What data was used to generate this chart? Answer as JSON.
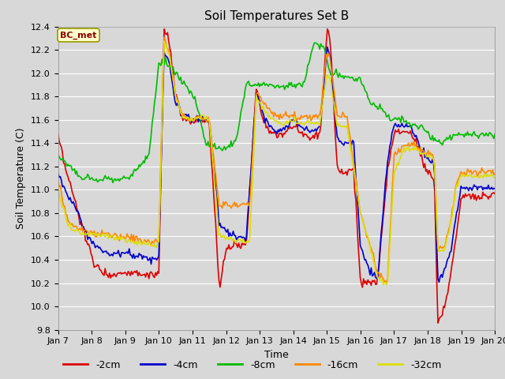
{
  "title": "Soil Temperatures Set B",
  "xlabel": "Time",
  "ylabel": "Soil Temperature (C)",
  "ylim": [
    9.8,
    12.4
  ],
  "annotation": "BC_met",
  "colors": {
    "-2cm": "#dd0000",
    "-4cm": "#0000cc",
    "-8cm": "#00bb00",
    "-16cm": "#ff8800",
    "-32cm": "#dddd00"
  },
  "line_width": 1.2,
  "x_ticks": [
    "Jan 7",
    "Jan 8",
    "Jan 9",
    "Jan 10",
    "Jan 11",
    "Jan 12",
    "Jan 13",
    "Jan 14",
    "Jan 15",
    "Jan 16",
    "Jan 17",
    "Jan 18",
    "Jan 19",
    "Jan 20"
  ],
  "background_color": "#d8d8d8",
  "plot_bg_color": "#d8d8d8",
  "grid_color": "#ffffff",
  "y_ticks": [
    9.8,
    10.0,
    10.2,
    10.4,
    10.6,
    10.8,
    11.0,
    11.2,
    11.4,
    11.6,
    11.8,
    12.0,
    12.2,
    12.4
  ],
  "knots_2cm_t": [
    0,
    0.2,
    0.5,
    0.8,
    1.1,
    1.5,
    1.8,
    2.0,
    2.5,
    2.8,
    3.0,
    3.15,
    3.3,
    3.5,
    3.7,
    4.0,
    4.2,
    4.5,
    4.8,
    5.0,
    5.3,
    5.6,
    5.9,
    6.1,
    6.3,
    6.5,
    6.8,
    7.0,
    7.2,
    7.5,
    7.8,
    8.0,
    8.1,
    8.3,
    8.5,
    8.8,
    9.0,
    9.2,
    9.5,
    9.8,
    10.0,
    10.2,
    10.5,
    10.8,
    11.0,
    11.1,
    11.2,
    11.3,
    11.5,
    11.7,
    11.85,
    12.0,
    12.2,
    12.5,
    13.0
  ],
  "knots_2cm_v": [
    11.45,
    11.2,
    10.9,
    10.6,
    10.35,
    10.27,
    10.28,
    10.3,
    10.28,
    10.26,
    10.28,
    12.35,
    12.3,
    11.8,
    11.6,
    11.58,
    11.6,
    11.58,
    10.15,
    10.5,
    10.53,
    10.52,
    11.9,
    11.6,
    11.5,
    11.45,
    11.5,
    11.55,
    11.5,
    11.45,
    11.48,
    12.37,
    12.3,
    11.2,
    11.15,
    11.18,
    10.2,
    10.2,
    10.2,
    11.15,
    11.5,
    11.5,
    11.5,
    11.3,
    11.15,
    11.12,
    11.1,
    9.85,
    10.0,
    10.3,
    10.6,
    10.95,
    10.95,
    10.95,
    10.95
  ],
  "knots_4cm_t": [
    0,
    0.2,
    0.5,
    0.8,
    1.1,
    1.5,
    1.8,
    2.0,
    2.5,
    2.8,
    3.0,
    3.15,
    3.3,
    3.5,
    3.7,
    4.0,
    4.2,
    4.5,
    4.8,
    5.0,
    5.3,
    5.6,
    5.9,
    6.1,
    6.3,
    6.5,
    6.8,
    7.0,
    7.2,
    7.5,
    7.8,
    8.0,
    8.1,
    8.3,
    8.5,
    8.8,
    9.0,
    9.2,
    9.5,
    9.8,
    10.0,
    10.2,
    10.5,
    10.8,
    11.0,
    11.1,
    11.2,
    11.3,
    11.5,
    11.7,
    11.85,
    12.0,
    12.2,
    12.5,
    13.0
  ],
  "knots_4cm_v": [
    11.15,
    11.0,
    10.85,
    10.65,
    10.52,
    10.45,
    10.45,
    10.47,
    10.42,
    10.4,
    10.42,
    12.19,
    12.1,
    11.75,
    11.65,
    11.6,
    11.62,
    11.6,
    10.7,
    10.65,
    10.6,
    10.58,
    11.85,
    11.65,
    11.55,
    11.5,
    11.55,
    11.6,
    11.55,
    11.5,
    11.53,
    12.22,
    12.15,
    11.45,
    11.4,
    11.42,
    10.5,
    10.35,
    10.22,
    11.25,
    11.55,
    11.55,
    11.55,
    11.35,
    11.28,
    11.25,
    11.22,
    10.22,
    10.3,
    10.5,
    10.78,
    11.02,
    11.02,
    11.02,
    11.02
  ],
  "knots_8cm_t": [
    0,
    0.15,
    0.3,
    0.5,
    0.7,
    0.9,
    1.1,
    1.3,
    1.5,
    1.8,
    2.1,
    2.4,
    2.7,
    3.0,
    3.2,
    3.5,
    3.8,
    4.1,
    4.4,
    4.7,
    5.0,
    5.3,
    5.6,
    6.0,
    6.3,
    6.6,
    7.0,
    7.3,
    7.6,
    7.9,
    8.1,
    8.4,
    8.7,
    9.0,
    9.3,
    9.6,
    9.9,
    10.2,
    10.5,
    10.8,
    11.1,
    11.4,
    11.7,
    12.0,
    12.3,
    13.0
  ],
  "knots_8cm_v": [
    11.28,
    11.25,
    11.22,
    11.15,
    11.1,
    11.1,
    11.08,
    11.08,
    11.1,
    11.1,
    11.1,
    11.2,
    11.3,
    12.08,
    12.1,
    12.0,
    11.9,
    11.75,
    11.4,
    11.35,
    11.35,
    11.42,
    11.9,
    11.9,
    11.9,
    11.88,
    11.9,
    11.9,
    12.25,
    12.22,
    12.0,
    11.98,
    11.96,
    11.95,
    11.75,
    11.7,
    11.6,
    11.6,
    11.55,
    11.55,
    11.45,
    11.4,
    11.45,
    11.47,
    11.47,
    11.47
  ],
  "knots_16cm_t": [
    0,
    0.15,
    0.3,
    0.5,
    0.8,
    1.1,
    1.5,
    1.9,
    2.3,
    2.8,
    3.0,
    3.15,
    3.3,
    3.5,
    3.7,
    4.0,
    4.2,
    4.5,
    4.8,
    5.1,
    5.4,
    5.7,
    5.9,
    6.1,
    6.3,
    6.6,
    7.0,
    7.2,
    7.5,
    7.8,
    8.0,
    8.1,
    8.3,
    8.6,
    9.0,
    9.3,
    9.5,
    9.8,
    10.0,
    10.3,
    10.6,
    10.9,
    11.1,
    11.2,
    11.3,
    11.5,
    11.7,
    11.85,
    12.0,
    12.2,
    12.5,
    13.0
  ],
  "knots_16cm_v": [
    11.1,
    10.9,
    10.72,
    10.68,
    10.65,
    10.62,
    10.62,
    10.6,
    10.58,
    10.55,
    10.56,
    12.31,
    12.2,
    11.8,
    11.65,
    11.6,
    11.62,
    11.6,
    10.85,
    10.87,
    10.87,
    10.87,
    11.83,
    11.75,
    11.68,
    11.62,
    11.65,
    11.62,
    11.63,
    11.63,
    12.2,
    12.1,
    11.65,
    11.63,
    10.8,
    10.5,
    10.3,
    10.2,
    11.3,
    11.38,
    11.38,
    11.33,
    11.3,
    11.28,
    10.5,
    10.5,
    10.75,
    11.05,
    11.15,
    11.15,
    11.15,
    11.15
  ],
  "knots_32cm_t": [
    0,
    0.15,
    0.3,
    0.5,
    0.8,
    1.1,
    1.5,
    1.9,
    2.3,
    2.8,
    3.0,
    3.15,
    3.3,
    3.5,
    3.7,
    4.0,
    4.2,
    4.5,
    4.8,
    5.1,
    5.4,
    5.7,
    5.9,
    6.1,
    6.3,
    6.6,
    7.0,
    7.2,
    7.5,
    7.8,
    8.0,
    8.1,
    8.3,
    8.6,
    9.0,
    9.3,
    9.5,
    9.8,
    10.0,
    10.3,
    10.6,
    10.9,
    11.1,
    11.2,
    11.3,
    11.5,
    11.7,
    11.85,
    12.0,
    12.2,
    12.5,
    13.0
  ],
  "knots_32cm_v": [
    11.0,
    10.85,
    10.7,
    10.65,
    10.62,
    10.62,
    10.6,
    10.58,
    10.55,
    10.52,
    10.53,
    12.28,
    12.18,
    11.8,
    11.63,
    11.6,
    11.62,
    11.6,
    10.6,
    10.58,
    10.56,
    10.55,
    11.8,
    11.7,
    11.63,
    11.56,
    11.6,
    11.57,
    11.58,
    11.57,
    12.0,
    11.95,
    11.55,
    11.55,
    10.8,
    10.5,
    10.25,
    10.18,
    11.15,
    11.35,
    11.35,
    11.3,
    11.28,
    11.25,
    10.48,
    10.5,
    10.72,
    11.02,
    11.12,
    11.12,
    11.12,
    11.12
  ]
}
